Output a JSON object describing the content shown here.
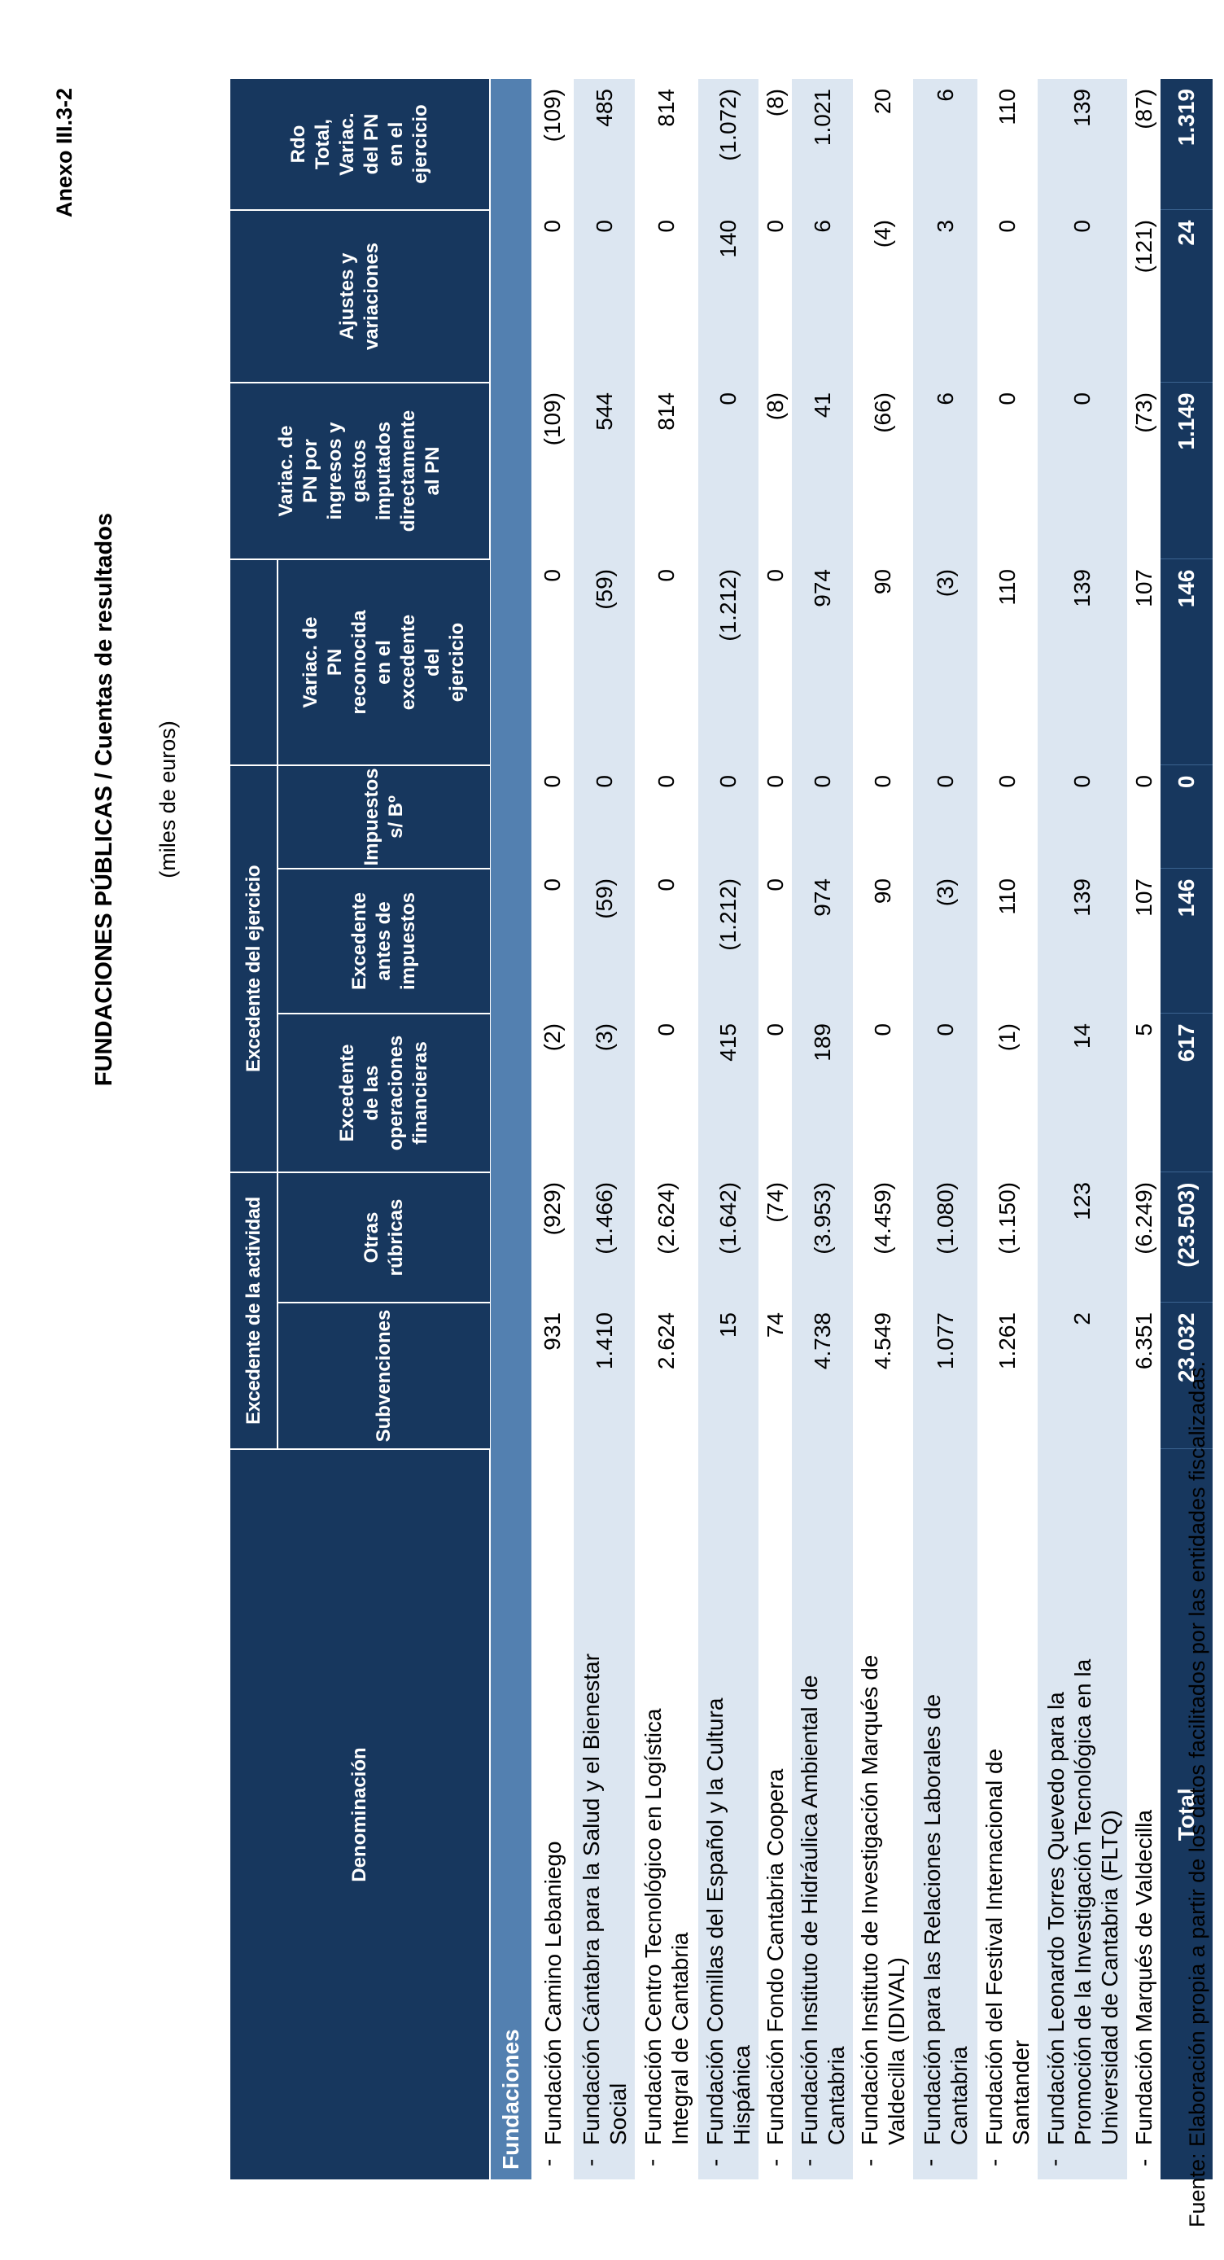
{
  "page": {
    "annex": "Anexo III.3-2",
    "title": "FUNDACIONES PÚBLICAS  /  Cuentas de resultados",
    "subtitle": "(miles de euros)",
    "source": "Fuente: Elaboración propia a partir de los datos facilitados por las entidades fiscalizadas."
  },
  "table": {
    "header": {
      "denominacion": "Denominación",
      "group_actividad": "Excedente de la actividad",
      "group_ejercicio": "Excedente del ejercicio",
      "cols": [
        "Subvenciones",
        "Otras\nrúbricas",
        "Excedente\nde las\noperaciones\nfinancieras",
        "Excedente\nantes de\nimpuestos",
        "Impuestos\ns/ Bº",
        "Variac. de\nPN\nreconocida\nen el\nexcedente\ndel\nejercicio",
        "Variac. de\nPN por\ningresos y\ngastos\nimputados\ndirectamente\nal PN",
        "Ajustes y\nvariaciones",
        "Rdo\nTotal,\nVariac.\ndel PN\nen el\nejercicio"
      ]
    },
    "section": "Fundaciones",
    "rows": [
      {
        "name": "Fundación Camino Lebaniego",
        "values": [
          "931",
          "(929)",
          "(2)",
          "0",
          "0",
          "0",
          "(109)",
          "0",
          "(109)"
        ]
      },
      {
        "name": "Fundación Cántabra para la Salud y el Bienestar\nSocial",
        "values": [
          "1.410",
          "(1.466)",
          "(3)",
          "(59)",
          "0",
          "(59)",
          "544",
          "0",
          "485"
        ]
      },
      {
        "name": "Fundación Centro Tecnológico en Logística\nIntegral de Cantabria",
        "values": [
          "2.624",
          "(2.624)",
          "0",
          "0",
          "0",
          "0",
          "814",
          "0",
          "814"
        ]
      },
      {
        "name": "Fundación Comillas del Español y la Cultura\nHispánica",
        "values": [
          "15",
          "(1.642)",
          "415",
          "(1.212)",
          "0",
          "(1.212)",
          "0",
          "140",
          "(1.072)"
        ]
      },
      {
        "name": "Fundación Fondo Cantabria Coopera",
        "values": [
          "74",
          "(74)",
          "0",
          "0",
          "0",
          "0",
          "(8)",
          "0",
          "(8)"
        ]
      },
      {
        "name": "Fundación Instituto de Hidráulica Ambiental de\nCantabria",
        "values": [
          "4.738",
          "(3.953)",
          "189",
          "974",
          "0",
          "974",
          "41",
          "6",
          "1.021"
        ]
      },
      {
        "name": "Fundación Instituto de Investigación Marqués de\nValdecilla (IDIVAL)",
        "values": [
          "4.549",
          "(4.459)",
          "0",
          "90",
          "0",
          "90",
          "(66)",
          "(4)",
          "20"
        ]
      },
      {
        "name": "Fundación para las Relaciones Laborales de\nCantabria",
        "values": [
          "1.077",
          "(1.080)",
          "0",
          "(3)",
          "0",
          "(3)",
          "6",
          "3",
          "6"
        ]
      },
      {
        "name": "Fundación del Festival Internacional de\nSantander",
        "values": [
          "1.261",
          "(1.150)",
          "(1)",
          "110",
          "0",
          "110",
          "0",
          "0",
          "110"
        ]
      },
      {
        "name": "Fundación Leonardo Torres Quevedo para la\nPromoción de la Investigación Tecnológica en la\nUniversidad de Cantabria (FLTQ)",
        "values": [
          "2",
          "123",
          "14",
          "139",
          "0",
          "139",
          "0",
          "0",
          "139"
        ]
      },
      {
        "name": "Fundación Marqués de Valdecilla",
        "values": [
          "6.351",
          "(6.249)",
          "5",
          "107",
          "0",
          "107",
          "(73)",
          "(121)",
          "(87)"
        ]
      }
    ],
    "total": {
      "label": "Total",
      "values": [
        "23.032",
        "(23.503)",
        "617",
        "146",
        "0",
        "146",
        "1.149",
        "24",
        "1.319"
      ]
    }
  }
}
